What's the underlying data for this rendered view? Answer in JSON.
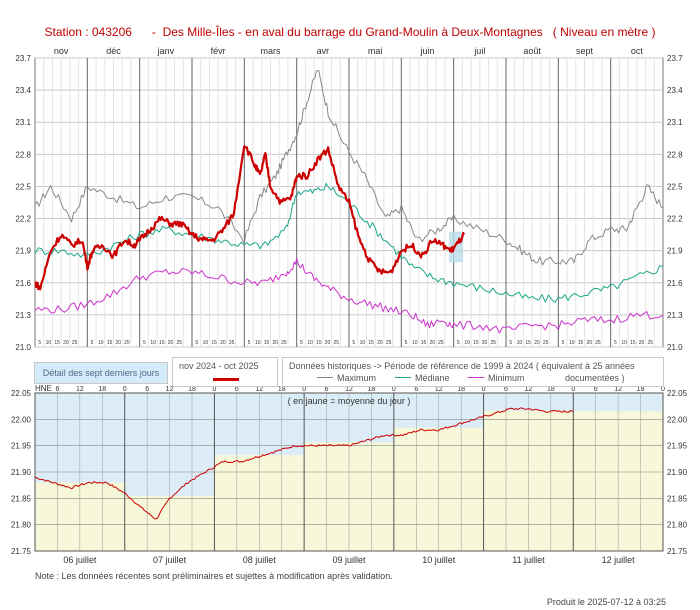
{
  "title": "Station : 043206      -  Des Mille-Îles - en aval du barrage du Grand-Moulin à Deux-Montagnes   ( Niveau en mètre )",
  "colors": {
    "current": "#cc0000",
    "maximum": "#888888",
    "median": "#1aa888",
    "minimum": "#cc33cc",
    "detail_line": "#cc0000",
    "detail_bg_upper": "#dcedf8",
    "detail_bg_lower": "#f7f7d9",
    "highlight_box": "#b8dcea"
  },
  "legend": {
    "detail": "Détail des sept derniers jours",
    "period": "nov 2024 - oct 2025",
    "historic": "Données historiques -> Période de référence  de 1999 à 2024   ( équivalent à 25 années",
    "documented": "documentées )",
    "maximum": "Maximum",
    "median": "Médiane",
    "minimum": "Minimum"
  },
  "note_yellow": "( en jaune = moyenne du jour )",
  "bottom_unit_label": "HNE",
  "footnote": "Note : Les données récentes sont préliminaires et sujettes à modification après validation.",
  "produced": "Produit le 2025-07-12 à 03:25",
  "chart_data": [
    {
      "type": "line",
      "months": [
        "nov",
        "déc",
        "janv",
        "févr",
        "mars",
        "avr",
        "mai",
        "juin",
        "juil",
        "août",
        "sept",
        "oct"
      ],
      "day_ticks": [
        "5",
        "10",
        "15",
        "20",
        "25"
      ],
      "ylim": [
        21.0,
        23.7
      ],
      "yticks": [
        "21.0",
        "21.3",
        "21.6",
        "21.9",
        "22.2",
        "22.5",
        "22.8",
        "23.1",
        "23.4",
        "23.7"
      ],
      "series": [
        {
          "name": "Maximum",
          "x_month": [
            0,
            0.3,
            0.7,
            1,
            1.5,
            2,
            2.5,
            3,
            3.5,
            4,
            4.3,
            4.6,
            4.8,
            5,
            5.2,
            5.4,
            5.6,
            5.9,
            6.3,
            6.7,
            7,
            7.3,
            7.7,
            8,
            8.5,
            9,
            9.3,
            9.6,
            10,
            10.3,
            10.6,
            11,
            11.3,
            11.5,
            11.7,
            12
          ],
          "values": [
            22.3,
            22.5,
            22.2,
            22.5,
            22.4,
            22.3,
            22.4,
            22.4,
            22.3,
            22.0,
            22.4,
            22.6,
            22.8,
            23.0,
            23.3,
            23.6,
            23.2,
            22.9,
            22.6,
            22.2,
            22.3,
            22.0,
            22.1,
            22.2,
            22.1,
            22.0,
            21.9,
            21.8,
            21.8,
            21.8,
            22.0,
            22.1,
            22.1,
            22.3,
            22.5,
            22.3
          ]
        },
        {
          "name": "Médiane",
          "x_month": [
            0,
            0.5,
            1,
            1.5,
            2,
            2.5,
            3,
            3.5,
            4,
            4.4,
            4.8,
            5,
            5.3,
            5.6,
            6,
            6.4,
            6.8,
            7.2,
            7.6,
            8,
            8.5,
            9,
            9.5,
            10,
            10.5,
            11,
            11.5,
            12
          ],
          "values": [
            21.9,
            21.9,
            21.85,
            21.95,
            22.05,
            22.1,
            22.05,
            22.0,
            21.95,
            21.95,
            22.1,
            22.45,
            22.45,
            22.5,
            22.35,
            22.15,
            21.95,
            21.75,
            21.65,
            21.6,
            21.55,
            21.5,
            21.45,
            21.45,
            21.5,
            21.55,
            21.65,
            21.75
          ]
        },
        {
          "name": "Minimum",
          "x_month": [
            0,
            0.5,
            1,
            1.5,
            2,
            2.5,
            3,
            3.5,
            4,
            4.4,
            4.8,
            5,
            5.3,
            5.6,
            6,
            6.4,
            6.8,
            7.2,
            7.5,
            7.8,
            8,
            8.5,
            9,
            9.5,
            10,
            10.5,
            11,
            11.5,
            12
          ],
          "values": [
            21.35,
            21.35,
            21.4,
            21.5,
            21.65,
            21.7,
            21.7,
            21.65,
            21.6,
            21.6,
            21.7,
            21.8,
            21.65,
            21.55,
            21.45,
            21.4,
            21.35,
            21.3,
            21.2,
            21.25,
            21.2,
            21.2,
            21.15,
            21.2,
            21.2,
            21.25,
            21.25,
            21.3,
            21.3
          ]
        },
        {
          "name": "nov 2024 - oct 2025",
          "x_month": [
            0,
            0.1,
            0.3,
            0.5,
            0.7,
            0.9,
            1,
            1.1,
            1.3,
            1.5,
            1.7,
            1.9,
            2,
            2.2,
            2.4,
            2.6,
            2.8,
            3,
            3.2,
            3.4,
            3.6,
            3.8,
            4,
            4.2,
            4.3,
            4.4,
            4.5,
            4.7,
            4.9,
            5,
            5.2,
            5.4,
            5.6,
            5.8,
            6,
            6.2,
            6.4,
            6.6,
            6.8,
            7,
            7.2,
            7.4,
            7.6,
            7.8,
            7.95,
            8.05,
            8.2
          ],
          "values": [
            21.6,
            21.55,
            21.9,
            22.05,
            21.95,
            22.0,
            21.75,
            21.9,
            21.95,
            21.85,
            22.0,
            21.95,
            22.0,
            22.1,
            22.2,
            22.15,
            22.15,
            22.05,
            22.0,
            22.0,
            22.1,
            22.25,
            22.9,
            22.7,
            22.6,
            22.8,
            22.5,
            22.35,
            22.4,
            22.6,
            22.6,
            22.75,
            22.85,
            22.5,
            22.35,
            22.0,
            21.8,
            21.7,
            21.7,
            21.9,
            21.95,
            21.85,
            22.0,
            21.95,
            21.9,
            21.95,
            22.05
          ]
        }
      ]
    },
    {
      "type": "line",
      "days": [
        "06 juillet",
        "07 juillet",
        "08 juillet",
        "09 juillet",
        "10 juillet",
        "11 juillet",
        "12 juillet"
      ],
      "hour_ticks": [
        "6",
        "12",
        "18",
        "0"
      ],
      "ylim": [
        21.75,
        22.05
      ],
      "yticks": [
        "21.75",
        "21.80",
        "21.85",
        "21.90",
        "21.95",
        "22.00",
        "22.05"
      ],
      "daily_mean_level": 22.01,
      "series": [
        {
          "name": "Niveau",
          "x_day": [
            0,
            0.2,
            0.4,
            0.6,
            0.8,
            1.0,
            1.2,
            1.35,
            1.5,
            1.7,
            1.9,
            2.1,
            2.3,
            2.5,
            2.7,
            2.9,
            3.1,
            3.3,
            3.5,
            3.7,
            3.9,
            4.1,
            4.3,
            4.5,
            4.7,
            4.9,
            5.1,
            5.3,
            5.5,
            5.7,
            5.9,
            6.0
          ],
          "values": [
            21.89,
            21.88,
            21.87,
            21.88,
            21.88,
            21.86,
            21.83,
            21.81,
            21.85,
            21.88,
            21.9,
            21.92,
            21.92,
            21.93,
            21.94,
            21.95,
            21.95,
            21.95,
            21.95,
            21.96,
            21.97,
            21.97,
            21.98,
            21.98,
            21.99,
            22.0,
            22.01,
            22.02,
            22.02,
            22.015,
            22.015,
            22.015
          ]
        }
      ]
    }
  ]
}
